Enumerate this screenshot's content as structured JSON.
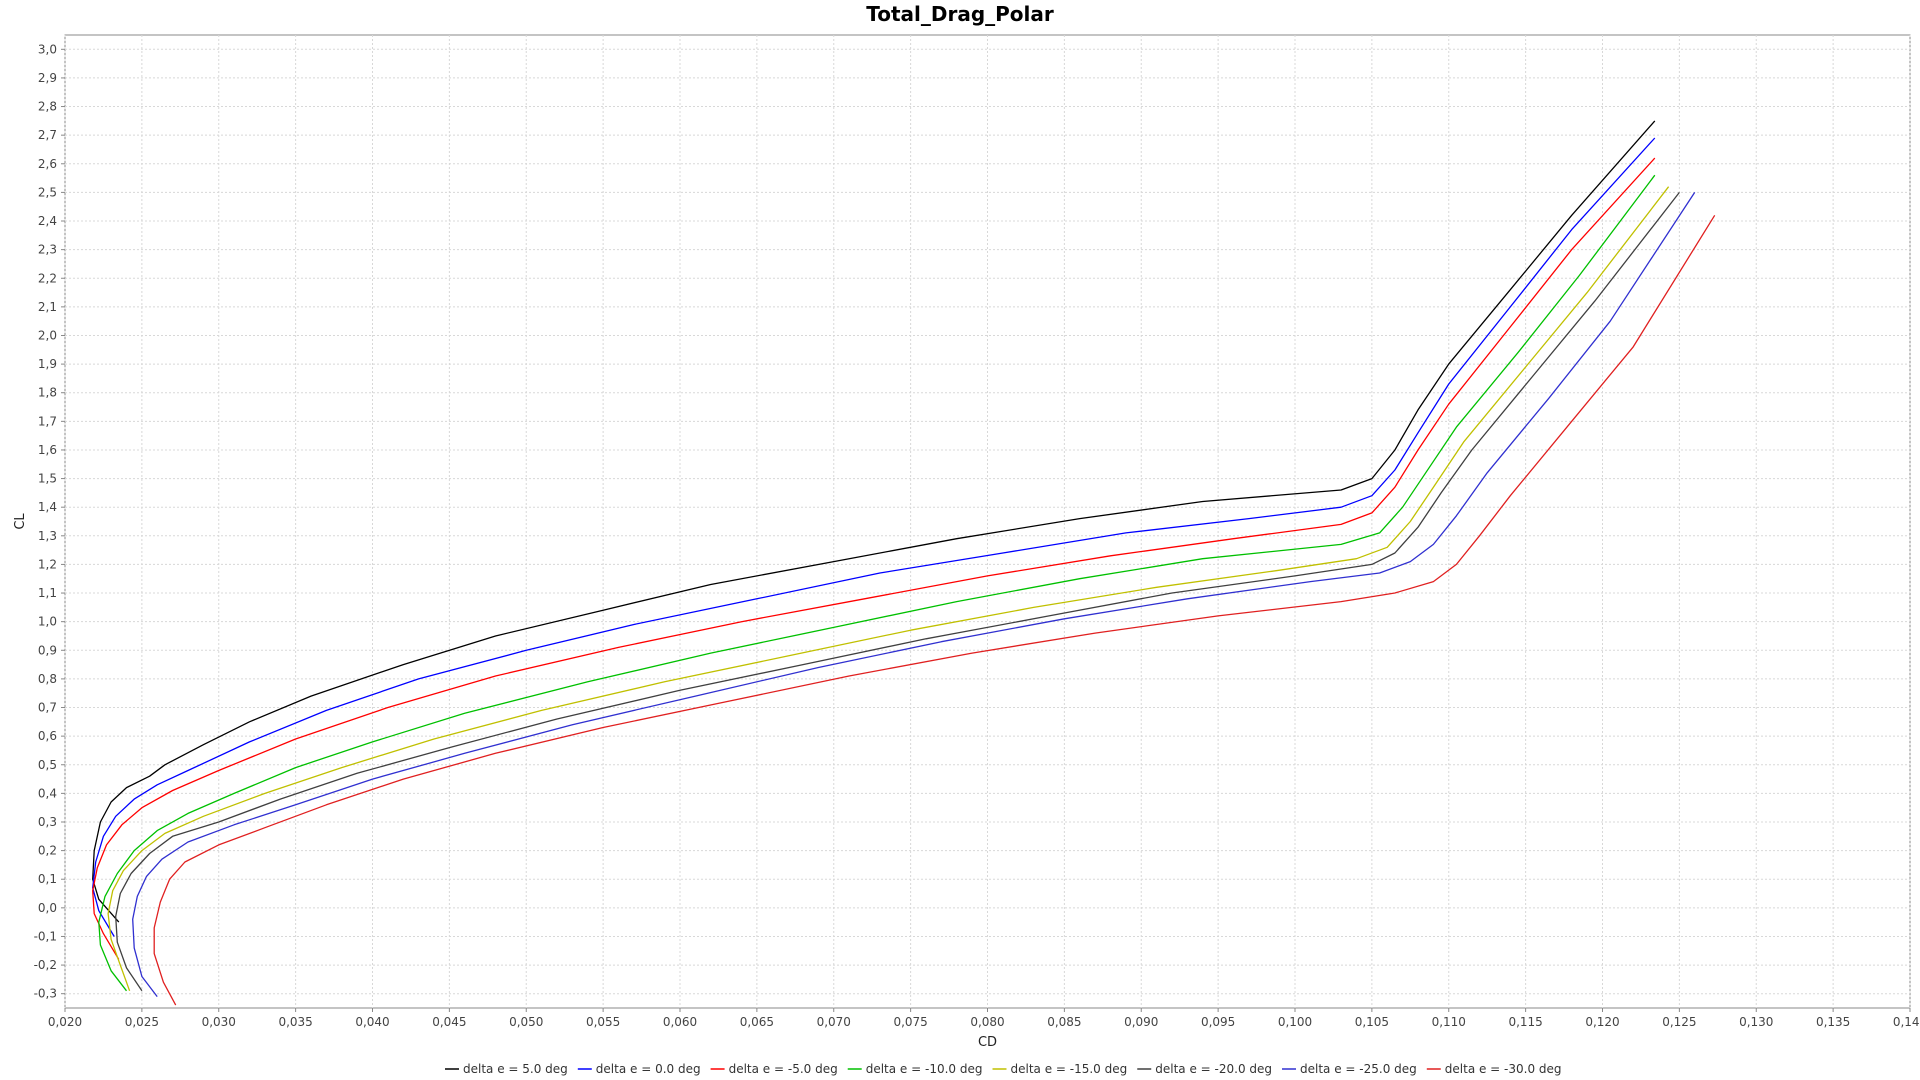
{
  "chart_data": {
    "type": "line",
    "title": "Total_Drag_Polar",
    "xlabel": "CD",
    "ylabel": "CL",
    "xlim": [
      0.02,
      0.14
    ],
    "ylim": [
      -0.35,
      3.05
    ],
    "x_ticks": [
      0.02,
      0.025,
      0.03,
      0.035,
      0.04,
      0.045,
      0.05,
      0.055,
      0.06,
      0.065,
      0.07,
      0.075,
      0.08,
      0.085,
      0.09,
      0.095,
      0.1,
      0.105,
      0.11,
      0.115,
      0.12,
      0.125,
      0.13,
      0.135,
      0.14
    ],
    "x_tick_labels": [
      "0,020",
      "0,025",
      "0,030",
      "0,035",
      "0,040",
      "0,045",
      "0,050",
      "0,055",
      "0,060",
      "0,065",
      "0,070",
      "0,075",
      "0,080",
      "0,085",
      "0,090",
      "0,095",
      "0,100",
      "0,105",
      "0,110",
      "0,115",
      "0,120",
      "0,125",
      "0,130",
      "0,135",
      "0,140"
    ],
    "y_ticks": [
      -0.3,
      -0.2,
      -0.1,
      0.0,
      0.1,
      0.2,
      0.3,
      0.4,
      0.5,
      0.6,
      0.7,
      0.8,
      0.9,
      1.0,
      1.1,
      1.2,
      1.3,
      1.4,
      1.5,
      1.6,
      1.7,
      1.8,
      1.9,
      2.0,
      2.1,
      2.2,
      2.3,
      2.4,
      2.5,
      2.6,
      2.7,
      2.8,
      2.9,
      3.0
    ],
    "y_tick_labels": [
      "-0,3",
      "-0,2",
      "-0,1",
      "0,0",
      "0,1",
      "0,2",
      "0,3",
      "0,4",
      "0,5",
      "0,6",
      "0,7",
      "0,8",
      "0,9",
      "1,0",
      "1,1",
      "1,2",
      "1,3",
      "1,4",
      "1,5",
      "1,6",
      "1,7",
      "1,8",
      "1,9",
      "2,0",
      "2,1",
      "2,2",
      "2,3",
      "2,4",
      "2,5",
      "2,6",
      "2,7",
      "2,8",
      "2,9",
      "3,0"
    ],
    "grid": true,
    "legend_position": "bottom",
    "series": [
      {
        "name": "delta e = 5.0 deg",
        "color": "#000000",
        "x": [
          0.0235,
          0.0222,
          0.0218,
          0.0219,
          0.0223,
          0.023,
          0.024,
          0.0255,
          0.0265,
          0.029,
          0.032,
          0.036,
          0.042,
          0.048,
          0.055,
          0.062,
          0.07,
          0.078,
          0.086,
          0.094,
          0.103,
          0.105,
          0.1065,
          0.108,
          0.11,
          0.114,
          0.118,
          0.1234
        ],
        "y": [
          -0.05,
          0.03,
          0.1,
          0.2,
          0.3,
          0.37,
          0.42,
          0.46,
          0.5,
          0.57,
          0.65,
          0.74,
          0.85,
          0.95,
          1.04,
          1.13,
          1.21,
          1.29,
          1.36,
          1.42,
          1.46,
          1.5,
          1.6,
          1.74,
          1.9,
          2.16,
          2.42,
          2.75
        ]
      },
      {
        "name": "delta e = 0.0 deg",
        "color": "#0000ff",
        "x": [
          0.0232,
          0.0222,
          0.0218,
          0.022,
          0.0225,
          0.0233,
          0.0245,
          0.026,
          0.028,
          0.032,
          0.037,
          0.043,
          0.05,
          0.057,
          0.065,
          0.073,
          0.081,
          0.089,
          0.097,
          0.103,
          0.105,
          0.1065,
          0.108,
          0.11,
          0.114,
          0.118,
          0.1234
        ],
        "y": [
          -0.1,
          -0.01,
          0.07,
          0.16,
          0.25,
          0.32,
          0.38,
          0.43,
          0.48,
          0.58,
          0.69,
          0.8,
          0.9,
          0.99,
          1.08,
          1.17,
          1.24,
          1.31,
          1.36,
          1.4,
          1.44,
          1.53,
          1.66,
          1.83,
          2.1,
          2.37,
          2.69
        ]
      },
      {
        "name": "delta e = -5.0 deg",
        "color": "#ff0000",
        "x": [
          0.0235,
          0.0225,
          0.0219,
          0.0218,
          0.0221,
          0.0227,
          0.0237,
          0.025,
          0.027,
          0.03,
          0.035,
          0.041,
          0.048,
          0.056,
          0.064,
          0.072,
          0.08,
          0.088,
          0.096,
          0.103,
          0.105,
          0.1065,
          0.108,
          0.11,
          0.114,
          0.118,
          0.1234
        ],
        "y": [
          -0.18,
          -0.09,
          -0.02,
          0.06,
          0.14,
          0.22,
          0.29,
          0.35,
          0.41,
          0.48,
          0.59,
          0.7,
          0.81,
          0.91,
          1.0,
          1.08,
          1.16,
          1.23,
          1.29,
          1.34,
          1.38,
          1.47,
          1.6,
          1.76,
          2.03,
          2.3,
          2.62
        ]
      },
      {
        "name": "delta e = -10.0 deg",
        "color": "#00c000",
        "x": [
          0.024,
          0.023,
          0.0223,
          0.0222,
          0.0226,
          0.0234,
          0.0245,
          0.026,
          0.028,
          0.031,
          0.035,
          0.04,
          0.046,
          0.054,
          0.062,
          0.07,
          0.078,
          0.086,
          0.094,
          0.103,
          0.1055,
          0.107,
          0.1085,
          0.1105,
          0.1145,
          0.1185,
          0.1234
        ],
        "y": [
          -0.29,
          -0.22,
          -0.13,
          -0.05,
          0.04,
          0.12,
          0.2,
          0.27,
          0.33,
          0.4,
          0.49,
          0.58,
          0.68,
          0.79,
          0.89,
          0.98,
          1.07,
          1.15,
          1.22,
          1.27,
          1.31,
          1.4,
          1.52,
          1.68,
          1.94,
          2.21,
          2.56
        ]
      },
      {
        "name": "delta e = -15.0 deg",
        "color": "#c0c000",
        "x": [
          0.0242,
          0.0236,
          0.023,
          0.0228,
          0.0231,
          0.0238,
          0.025,
          0.0265,
          0.029,
          0.033,
          0.038,
          0.044,
          0.051,
          0.059,
          0.067,
          0.075,
          0.083,
          0.091,
          0.099,
          0.104,
          0.106,
          0.1075,
          0.109,
          0.111,
          0.115,
          0.119,
          0.1243
        ],
        "y": [
          -0.29,
          -0.2,
          -0.11,
          -0.02,
          0.06,
          0.13,
          0.2,
          0.26,
          0.32,
          0.4,
          0.49,
          0.59,
          0.69,
          0.79,
          0.88,
          0.97,
          1.05,
          1.12,
          1.18,
          1.22,
          1.26,
          1.35,
          1.47,
          1.63,
          1.89,
          2.15,
          2.52
        ]
      },
      {
        "name": "delta e = -20.0 deg",
        "color": "#404040",
        "x": [
          0.025,
          0.024,
          0.0234,
          0.0233,
          0.0236,
          0.0243,
          0.0255,
          0.027,
          0.03,
          0.034,
          0.039,
          0.045,
          0.052,
          0.06,
          0.068,
          0.076,
          0.084,
          0.092,
          0.1,
          0.105,
          0.1065,
          0.108,
          0.1095,
          0.1115,
          0.1155,
          0.1195,
          0.125
        ],
        "y": [
          -0.29,
          -0.21,
          -0.12,
          -0.03,
          0.05,
          0.12,
          0.19,
          0.25,
          0.3,
          0.38,
          0.47,
          0.56,
          0.66,
          0.76,
          0.85,
          0.94,
          1.02,
          1.1,
          1.16,
          1.2,
          1.24,
          1.33,
          1.45,
          1.6,
          1.86,
          2.12,
          2.5
        ]
      },
      {
        "name": "delta e = -25.0 deg",
        "color": "#3030d0",
        "x": [
          0.026,
          0.025,
          0.0245,
          0.0244,
          0.0247,
          0.0253,
          0.0263,
          0.028,
          0.031,
          0.035,
          0.04,
          0.046,
          0.053,
          0.061,
          0.069,
          0.077,
          0.085,
          0.093,
          0.101,
          0.1055,
          0.1075,
          0.109,
          0.1105,
          0.1125,
          0.1165,
          0.1205,
          0.126
        ],
        "y": [
          -0.31,
          -0.24,
          -0.14,
          -0.04,
          0.04,
          0.11,
          0.17,
          0.23,
          0.29,
          0.36,
          0.45,
          0.54,
          0.64,
          0.74,
          0.84,
          0.93,
          1.01,
          1.08,
          1.14,
          1.17,
          1.21,
          1.27,
          1.37,
          1.52,
          1.78,
          2.05,
          2.5
        ]
      },
      {
        "name": "delta e = -30.0 deg",
        "color": "#e02020",
        "x": [
          0.0272,
          0.0264,
          0.0258,
          0.0258,
          0.0262,
          0.0268,
          0.0278,
          0.03,
          0.033,
          0.037,
          0.042,
          0.048,
          0.055,
          0.063,
          0.071,
          0.079,
          0.087,
          0.095,
          0.103,
          0.1065,
          0.109,
          0.1105,
          0.112,
          0.114,
          0.118,
          0.122,
          0.1273
        ],
        "y": [
          -0.34,
          -0.26,
          -0.16,
          -0.07,
          0.02,
          0.1,
          0.16,
          0.22,
          0.28,
          0.36,
          0.45,
          0.54,
          0.63,
          0.72,
          0.81,
          0.89,
          0.96,
          1.02,
          1.07,
          1.1,
          1.14,
          1.2,
          1.3,
          1.44,
          1.7,
          1.96,
          2.42
        ]
      }
    ]
  }
}
